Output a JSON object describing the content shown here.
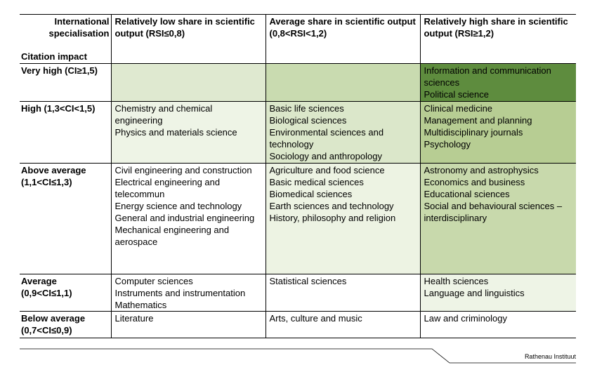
{
  "header": {
    "corner_top": "International specialisation",
    "corner_bottom": "Citation impact",
    "columns": [
      "Relatively low share in scientific output (RSI≤0,8)",
      "Average share in scientific output (0,8<RSI<1,2)",
      "Relatively high share in scientific output (RSI≥1,2)"
    ]
  },
  "rows": [
    {
      "label": "Very high (CI≥1,5)",
      "cells": [
        [],
        [],
        [
          "Information and communication sciences",
          "Political science"
        ]
      ]
    },
    {
      "label": "High (1,3<CI<1,5)",
      "cells": [
        [
          "Chemistry and chemical engineering",
          "Physics and materials science"
        ],
        [
          "Basic life sciences",
          "Biological sciences",
          "Environmental sciences and technology",
          "Sociology and anthropology"
        ],
        [
          "Clinical medicine",
          "Management and planning",
          "Multidisciplinary journals",
          "Psychology"
        ]
      ]
    },
    {
      "label": "Above average (1,1<CI≤1,3)",
      "cells": [
        [
          "Civil engineering and construction",
          "Electrical engineering and telecommun",
          "Energy science and technology",
          "General and industrial engineering",
          "Mechanical engineering and aerospace"
        ],
        [
          "Agriculture and food science",
          "Basic medical sciences",
          "Biomedical sciences",
          "Earth sciences and technology",
          "History, philosophy and religion"
        ],
        [
          "Astronomy and astrophysics",
          "Economics and business",
          "Educational sciences",
          "Social and behavioural sciences – interdisciplinary"
        ]
      ]
    },
    {
      "label": "Average (0,9<CI≤1,1)",
      "cells": [
        [
          "Computer sciences",
          "Instruments and instrumentation",
          "Mathematics"
        ],
        [
          "Statistical sciences"
        ],
        [
          "Health sciences",
          "Language and linguistics"
        ]
      ]
    },
    {
      "label": "Below average (0,7<CI≤0,9)",
      "cells": [
        [
          "Literature"
        ],
        [
          "Arts, culture and music"
        ],
        [
          "Law and criminology"
        ]
      ]
    }
  ],
  "footer": {
    "source": "Rathenau Instituut"
  }
}
